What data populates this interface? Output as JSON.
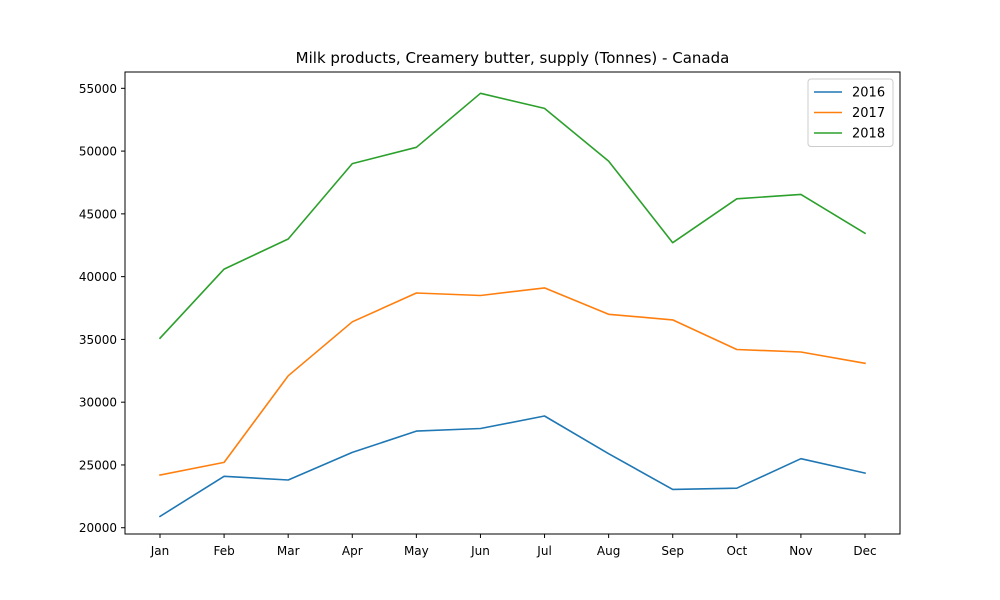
{
  "chart_data": {
    "type": "line",
    "title": "Milk products, Creamery butter, supply (Tonnes) - Canada",
    "xlabel": "",
    "ylabel": "",
    "categories": [
      "Jan",
      "Feb",
      "Mar",
      "Apr",
      "May",
      "Jun",
      "Jul",
      "Aug",
      "Sep",
      "Oct",
      "Nov",
      "Dec"
    ],
    "ylim": [
      19500,
      56300
    ],
    "yticks": [
      20000,
      25000,
      30000,
      35000,
      40000,
      45000,
      50000,
      55000
    ],
    "grid": false,
    "legend": "top-right",
    "series": [
      {
        "name": "2016",
        "color": "#1f77b4",
        "values": [
          20900,
          24100,
          23800,
          26000,
          27700,
          27900,
          28900,
          25900,
          23050,
          23150,
          25500,
          24350
        ]
      },
      {
        "name": "2017",
        "color": "#ff7f0e",
        "values": [
          24200,
          25200,
          32100,
          36400,
          38700,
          38500,
          39100,
          37000,
          36550,
          34200,
          34000,
          33100
        ]
      },
      {
        "name": "2018",
        "color": "#2ca02c",
        "values": [
          35100,
          40600,
          43000,
          49000,
          50300,
          54600,
          53400,
          49200,
          42700,
          46200,
          46550,
          43450
        ]
      }
    ]
  }
}
